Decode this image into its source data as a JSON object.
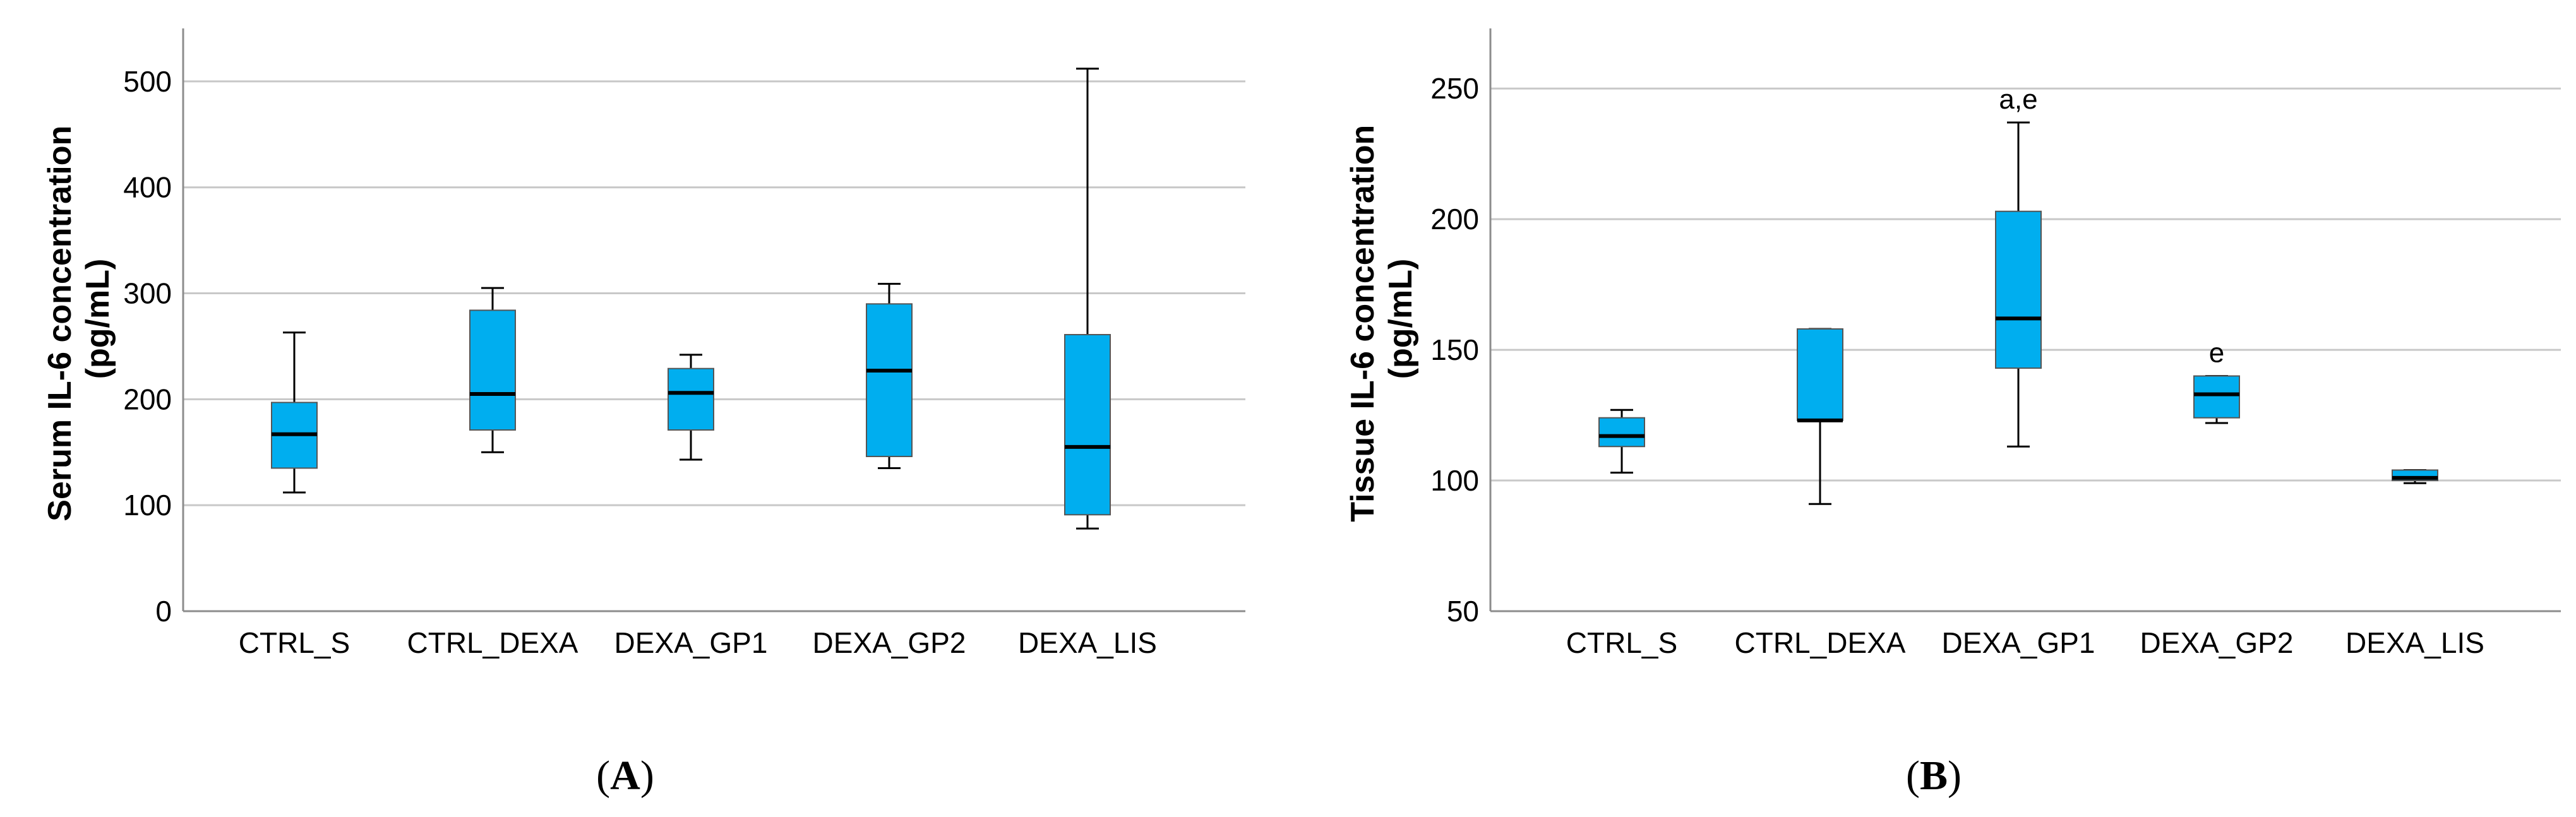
{
  "chart_data": [
    {
      "type": "box",
      "panel": "A",
      "panel_label_parts": [
        "(",
        "A",
        ")"
      ],
      "ylabel_lines": [
        "Serum IL-6 concentration",
        "(pg/mL)"
      ],
      "ylim": [
        0,
        550
      ],
      "yticks": [
        0,
        100,
        200,
        300,
        400,
        500
      ],
      "grid": true,
      "box_color": "#00AEEF",
      "categories": [
        "CTRL_S",
        "CTRL_DEXA",
        "DEXA_GP1",
        "DEXA_GP2",
        "DEXA_LIS"
      ],
      "boxes": [
        {
          "min": 112,
          "q1": 135,
          "median": 167,
          "q3": 197,
          "max": 263,
          "label": ""
        },
        {
          "min": 150,
          "q1": 171,
          "median": 205,
          "q3": 284,
          "max": 305,
          "label": ""
        },
        {
          "min": 143,
          "q1": 171,
          "median": 206,
          "q3": 229,
          "max": 242,
          "label": ""
        },
        {
          "min": 135,
          "q1": 146,
          "median": 227,
          "q3": 290,
          "max": 309,
          "label": ""
        },
        {
          "min": 78,
          "q1": 91,
          "median": 155,
          "q3": 261,
          "max": 512,
          "label": ""
        }
      ]
    },
    {
      "type": "box",
      "panel": "B",
      "panel_label_parts": [
        "(",
        "B",
        ")"
      ],
      "ylabel_lines": [
        "Tissue IL-6 concentration",
        "(pg/mL)"
      ],
      "ylim": [
        50,
        273
      ],
      "yticks": [
        50,
        100,
        150,
        200,
        250
      ],
      "grid": true,
      "box_color": "#00AEEF",
      "categories": [
        "CTRL_S",
        "CTRL_DEXA",
        "DEXA_GP1",
        "DEXA_GP2",
        "DEXA_LIS"
      ],
      "boxes": [
        {
          "min": 103,
          "q1": 113,
          "median": 117,
          "q3": 124,
          "max": 127,
          "label": ""
        },
        {
          "min": 91,
          "q1": 123,
          "median": 123,
          "q3": 158,
          "max": 158,
          "label": ""
        },
        {
          "min": 113,
          "q1": 143,
          "median": 162,
          "q3": 203,
          "max": 237,
          "label": "a,e"
        },
        {
          "min": 122,
          "q1": 124,
          "median": 133,
          "q3": 140,
          "max": 140,
          "label": "e"
        },
        {
          "min": 99,
          "q1": 100,
          "median": 101,
          "q3": 104,
          "max": 104,
          "label": ""
        }
      ]
    }
  ]
}
